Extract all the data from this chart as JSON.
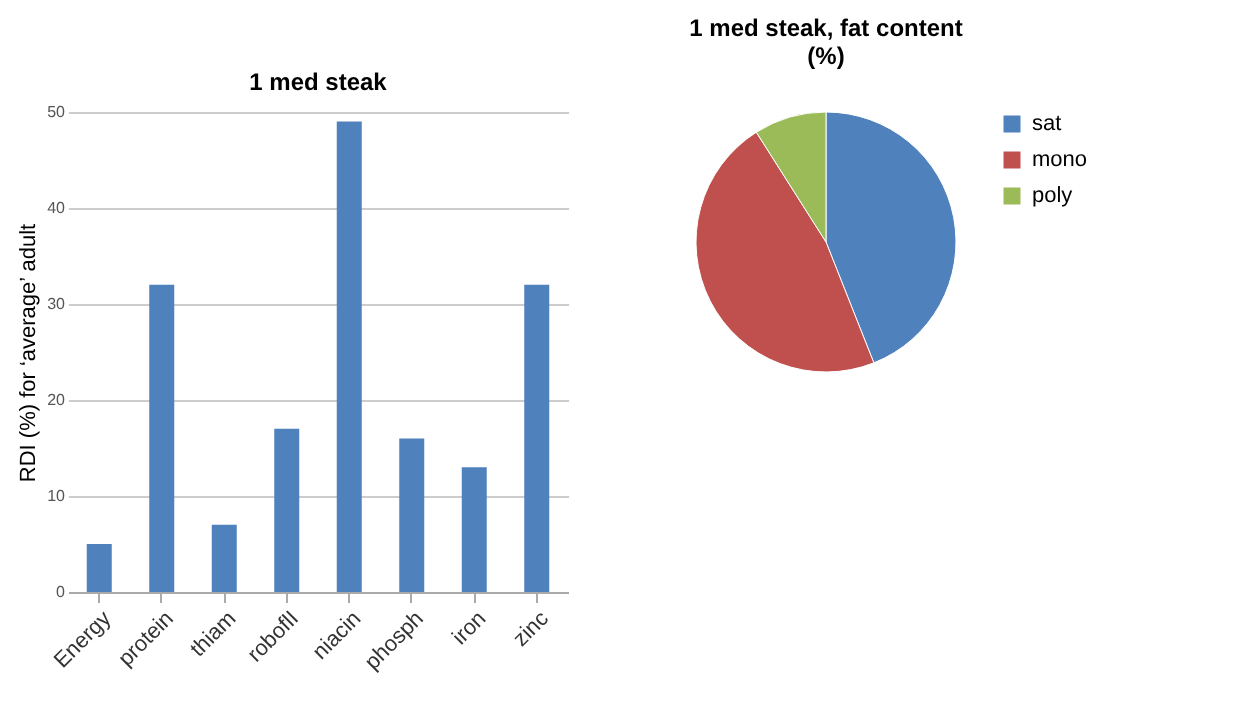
{
  "chart_data": [
    {
      "type": "bar",
      "title": "1 med steak",
      "ylabel": "RDI (%) for ‘average’ adult",
      "categories": [
        "Energy",
        "protein",
        "thiam",
        "roboflI",
        "niacin",
        "phosph",
        "iron",
        "zinc"
      ],
      "values": [
        5,
        32,
        7,
        17,
        49,
        16,
        13,
        32
      ],
      "color": "#4f81bd",
      "ylim": [
        0,
        50
      ],
      "yticks": [
        0,
        10,
        20,
        30,
        40,
        50
      ],
      "grid": "y"
    },
    {
      "type": "pie",
      "title": "1 med steak, fat content (%)",
      "categories": [
        "sat",
        "mono",
        "poly"
      ],
      "values": [
        44,
        47,
        9
      ],
      "colors": [
        "#4f81bd",
        "#c0504d",
        "#9bbb59"
      ],
      "legend": "right"
    }
  ]
}
